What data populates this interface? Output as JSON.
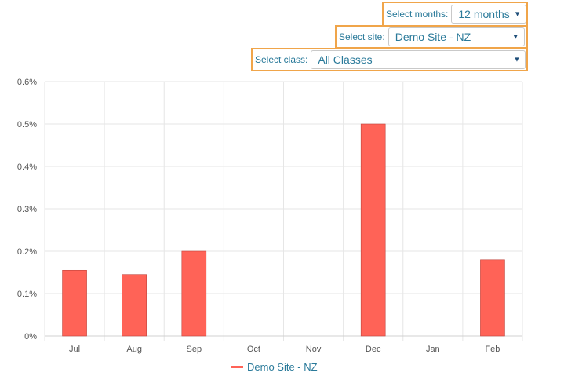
{
  "filters": {
    "months": {
      "label": "Select months:",
      "value": "12 months"
    },
    "site": {
      "label": "Select site:",
      "value": "Demo Site - NZ"
    },
    "class": {
      "label": "Select class:",
      "value": "All Classes"
    }
  },
  "colors": {
    "accent_border": "#f0a54a",
    "series": "#ff6357",
    "label_text": "#2a7a9a"
  },
  "chart_data": {
    "type": "bar",
    "categories": [
      "Jul",
      "Aug",
      "Sep",
      "Oct",
      "Nov",
      "Dec",
      "Jan",
      "Feb"
    ],
    "series": [
      {
        "name": "Demo Site - NZ",
        "values": [
          0.155,
          0.145,
          0.2,
          0,
          0,
          0.5,
          0,
          0.18
        ]
      }
    ],
    "y_ticks": [
      "0%",
      "0.1%",
      "0.2%",
      "0.3%",
      "0.4%",
      "0.5%",
      "0.6%"
    ],
    "ylim": [
      0,
      0.6
    ],
    "grid": true,
    "legend": "bottom-center"
  }
}
